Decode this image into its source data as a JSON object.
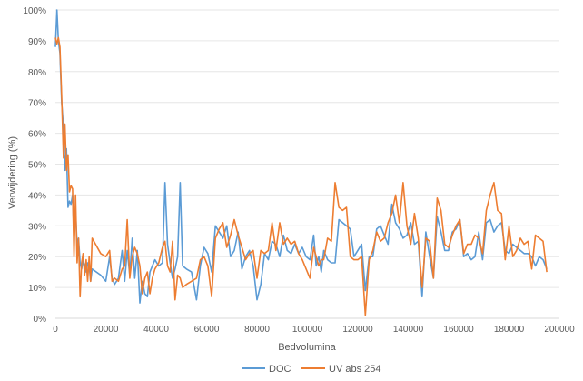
{
  "chart_data": {
    "type": "line",
    "title": "",
    "xlabel": "Bedvolumina",
    "ylabel": "Verwijdering (%)",
    "xlim": [
      0,
      200000
    ],
    "ylim": [
      0,
      100
    ],
    "x_ticks": [
      "0",
      "20000",
      "40000",
      "60000",
      "80000",
      "100000",
      "120000",
      "140000",
      "160000",
      "180000",
      "200000"
    ],
    "y_ticks": [
      "0%",
      "10%",
      "20%",
      "30%",
      "40%",
      "50%",
      "60%",
      "70%",
      "80%",
      "90%",
      "100%"
    ],
    "grid": "horizontal",
    "legend_position": "bottom",
    "series": [
      {
        "name": "DOC",
        "color": "#5B9BD5",
        "points": [
          [
            0,
            88
          ],
          [
            600,
            100
          ],
          [
            1200,
            90
          ],
          [
            1800,
            86
          ],
          [
            2500,
            70
          ],
          [
            3200,
            62
          ],
          [
            3800,
            48
          ],
          [
            4400,
            55
          ],
          [
            5000,
            36
          ],
          [
            5600,
            38
          ],
          [
            6200,
            37
          ],
          [
            6800,
            40
          ],
          [
            7400,
            26
          ],
          [
            8000,
            35
          ],
          [
            8600,
            24
          ],
          [
            9200,
            26
          ],
          [
            9800,
            18
          ],
          [
            10400,
            16
          ],
          [
            11000,
            19
          ],
          [
            11600,
            17
          ],
          [
            12200,
            15
          ],
          [
            12800,
            18
          ],
          [
            13400,
            17
          ],
          [
            14000,
            12
          ],
          [
            14600,
            16
          ],
          [
            18000,
            14
          ],
          [
            20000,
            12
          ],
          [
            21500,
            20
          ],
          [
            22500,
            13
          ],
          [
            23500,
            11
          ],
          [
            25000,
            13
          ],
          [
            26500,
            22
          ],
          [
            27500,
            12
          ],
          [
            28500,
            22
          ],
          [
            29500,
            14
          ],
          [
            30500,
            26
          ],
          [
            31500,
            13
          ],
          [
            32500,
            22
          ],
          [
            33500,
            5
          ],
          [
            34500,
            12
          ],
          [
            35500,
            8
          ],
          [
            36500,
            7
          ],
          [
            37500,
            15
          ],
          [
            38500,
            17
          ],
          [
            39500,
            19
          ],
          [
            41000,
            17
          ],
          [
            42500,
            18
          ],
          [
            43500,
            44
          ],
          [
            44500,
            24
          ],
          [
            45500,
            18
          ],
          [
            46500,
            13
          ],
          [
            47500,
            16
          ],
          [
            48500,
            20
          ],
          [
            49500,
            44
          ],
          [
            50500,
            17
          ],
          [
            52000,
            16
          ],
          [
            54000,
            15
          ],
          [
            56000,
            6
          ],
          [
            57500,
            17
          ],
          [
            59000,
            23
          ],
          [
            60500,
            21
          ],
          [
            62000,
            15
          ],
          [
            63500,
            30
          ],
          [
            65000,
            28
          ],
          [
            66500,
            26
          ],
          [
            68000,
            30
          ],
          [
            69500,
            20
          ],
          [
            71000,
            22
          ],
          [
            72500,
            28
          ],
          [
            74000,
            16
          ],
          [
            75500,
            20
          ],
          [
            77000,
            22
          ],
          [
            78500,
            17
          ],
          [
            80000,
            6
          ],
          [
            81500,
            11
          ],
          [
            83000,
            21
          ],
          [
            84500,
            19
          ],
          [
            86000,
            25
          ],
          [
            87500,
            24
          ],
          [
            89000,
            20
          ],
          [
            90500,
            27
          ],
          [
            92000,
            22
          ],
          [
            93500,
            21
          ],
          [
            95000,
            24
          ],
          [
            96500,
            21
          ],
          [
            98000,
            23
          ],
          [
            99500,
            20
          ],
          [
            101000,
            19
          ],
          [
            102500,
            27
          ],
          [
            103500,
            17
          ],
          [
            104500,
            20
          ],
          [
            105500,
            15
          ],
          [
            106500,
            22
          ],
          [
            108000,
            19
          ],
          [
            109500,
            18
          ],
          [
            111000,
            18
          ],
          [
            112500,
            32
          ],
          [
            114000,
            31
          ],
          [
            115500,
            30
          ],
          [
            117000,
            29
          ],
          [
            118500,
            20
          ],
          [
            120000,
            22
          ],
          [
            121500,
            24
          ],
          [
            123000,
            9
          ],
          [
            124500,
            20
          ],
          [
            126000,
            20
          ],
          [
            127500,
            29
          ],
          [
            129000,
            30
          ],
          [
            130500,
            27
          ],
          [
            132000,
            24
          ],
          [
            133500,
            37
          ],
          [
            135000,
            31
          ],
          [
            136500,
            29
          ],
          [
            138000,
            26
          ],
          [
            139500,
            27
          ],
          [
            141000,
            31
          ],
          [
            142500,
            24
          ],
          [
            144000,
            25
          ],
          [
            145500,
            7
          ],
          [
            147000,
            28
          ],
          [
            148500,
            20
          ],
          [
            150000,
            13
          ],
          [
            151500,
            33
          ],
          [
            153000,
            28
          ],
          [
            154500,
            22
          ],
          [
            156000,
            22
          ],
          [
            157500,
            28
          ],
          [
            159000,
            29
          ],
          [
            160500,
            32
          ],
          [
            162000,
            20
          ],
          [
            163500,
            21
          ],
          [
            165000,
            19
          ],
          [
            166500,
            20
          ],
          [
            168000,
            28
          ],
          [
            169500,
            19
          ],
          [
            171000,
            31
          ],
          [
            172500,
            32
          ],
          [
            174000,
            28
          ],
          [
            175500,
            30
          ],
          [
            177000,
            31
          ],
          [
            178500,
            22
          ],
          [
            180000,
            21
          ],
          [
            181500,
            24
          ],
          [
            183000,
            23
          ],
          [
            184500,
            22
          ],
          [
            186000,
            21
          ],
          [
            187500,
            21
          ],
          [
            189000,
            20
          ],
          [
            190500,
            17
          ],
          [
            192000,
            20
          ],
          [
            193500,
            19
          ],
          [
            195000,
            16
          ]
        ]
      },
      {
        "name": "UV abs 254",
        "color": "#ED7D31",
        "points": [
          [
            0,
            91
          ],
          [
            600,
            89
          ],
          [
            1200,
            91
          ],
          [
            1800,
            88
          ],
          [
            2500,
            72
          ],
          [
            3200,
            52
          ],
          [
            3800,
            63
          ],
          [
            4400,
            48
          ],
          [
            5000,
            53
          ],
          [
            5600,
            41
          ],
          [
            6200,
            43
          ],
          [
            6800,
            42
          ],
          [
            7400,
            20
          ],
          [
            8000,
            40
          ],
          [
            8600,
            18
          ],
          [
            9200,
            26
          ],
          [
            9800,
            7
          ],
          [
            10400,
            18
          ],
          [
            11000,
            21
          ],
          [
            11600,
            14
          ],
          [
            12200,
            19
          ],
          [
            12800,
            12
          ],
          [
            13400,
            20
          ],
          [
            14000,
            12
          ],
          [
            14600,
            26
          ],
          [
            18000,
            21
          ],
          [
            20000,
            20
          ],
          [
            21500,
            22
          ],
          [
            22500,
            12
          ],
          [
            23500,
            13
          ],
          [
            25000,
            12
          ],
          [
            26500,
            16
          ],
          [
            27500,
            17
          ],
          [
            28500,
            32
          ],
          [
            29500,
            13
          ],
          [
            30500,
            20
          ],
          [
            31500,
            23
          ],
          [
            32500,
            21
          ],
          [
            33500,
            17
          ],
          [
            34500,
            8
          ],
          [
            35500,
            13
          ],
          [
            36500,
            15
          ],
          [
            37500,
            8
          ],
          [
            38500,
            13
          ],
          [
            39500,
            16
          ],
          [
            41000,
            18
          ],
          [
            42500,
            23
          ],
          [
            43500,
            25
          ],
          [
            44500,
            17
          ],
          [
            45500,
            15
          ],
          [
            46500,
            25
          ],
          [
            47500,
            6
          ],
          [
            48500,
            14
          ],
          [
            49500,
            13
          ],
          [
            50500,
            10
          ],
          [
            52000,
            11
          ],
          [
            54000,
            12
          ],
          [
            56000,
            13
          ],
          [
            57500,
            19
          ],
          [
            59000,
            20
          ],
          [
            60500,
            17
          ],
          [
            62000,
            7
          ],
          [
            63500,
            26
          ],
          [
            65000,
            29
          ],
          [
            66500,
            31
          ],
          [
            68000,
            23
          ],
          [
            69500,
            27
          ],
          [
            71000,
            32
          ],
          [
            72500,
            27
          ],
          [
            74000,
            23
          ],
          [
            75500,
            19
          ],
          [
            77000,
            21
          ],
          [
            78500,
            22
          ],
          [
            80000,
            13
          ],
          [
            81500,
            22
          ],
          [
            83000,
            21
          ],
          [
            84500,
            22
          ],
          [
            86000,
            31
          ],
          [
            87500,
            22
          ],
          [
            89000,
            31
          ],
          [
            90500,
            24
          ],
          [
            92000,
            26
          ],
          [
            93500,
            24
          ],
          [
            95000,
            25
          ],
          [
            96500,
            21
          ],
          [
            98000,
            19
          ],
          [
            99500,
            16
          ],
          [
            101000,
            13
          ],
          [
            102500,
            23
          ],
          [
            103500,
            20
          ],
          [
            104500,
            17
          ],
          [
            105500,
            19
          ],
          [
            106500,
            19
          ],
          [
            108000,
            26
          ],
          [
            109500,
            25
          ],
          [
            111000,
            44
          ],
          [
            112500,
            36
          ],
          [
            114000,
            35
          ],
          [
            115500,
            36
          ],
          [
            117000,
            20
          ],
          [
            118500,
            19
          ],
          [
            120000,
            19
          ],
          [
            121500,
            20
          ],
          [
            123000,
            1
          ],
          [
            124500,
            19
          ],
          [
            126000,
            22
          ],
          [
            127500,
            28
          ],
          [
            129000,
            25
          ],
          [
            130500,
            26
          ],
          [
            132000,
            31
          ],
          [
            133500,
            34
          ],
          [
            135000,
            40
          ],
          [
            136500,
            31
          ],
          [
            138000,
            44
          ],
          [
            139500,
            30
          ],
          [
            141000,
            24
          ],
          [
            142500,
            34
          ],
          [
            144000,
            26
          ],
          [
            145500,
            10
          ],
          [
            147000,
            26
          ],
          [
            148500,
            25
          ],
          [
            150000,
            13
          ],
          [
            151500,
            39
          ],
          [
            153000,
            35
          ],
          [
            154500,
            24
          ],
          [
            156000,
            23
          ],
          [
            157500,
            27
          ],
          [
            159000,
            30
          ],
          [
            160500,
            32
          ],
          [
            162000,
            21
          ],
          [
            163500,
            24
          ],
          [
            165000,
            24
          ],
          [
            166500,
            27
          ],
          [
            168000,
            26
          ],
          [
            169500,
            21
          ],
          [
            171000,
            35
          ],
          [
            172500,
            40
          ],
          [
            174000,
            44
          ],
          [
            175500,
            35
          ],
          [
            177000,
            34
          ],
          [
            178500,
            19
          ],
          [
            180000,
            30
          ],
          [
            181500,
            20
          ],
          [
            183000,
            22
          ],
          [
            184500,
            26
          ],
          [
            186000,
            24
          ],
          [
            187500,
            25
          ],
          [
            189000,
            16
          ],
          [
            190500,
            27
          ],
          [
            192000,
            26
          ],
          [
            193500,
            25
          ],
          [
            195000,
            15
          ]
        ]
      }
    ]
  }
}
